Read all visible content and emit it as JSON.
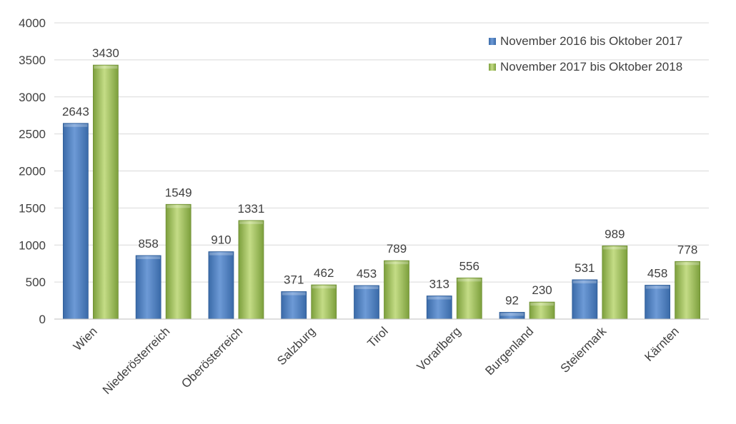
{
  "chart_data": {
    "type": "bar",
    "categories": [
      "Wien",
      "Niederösterreich",
      "Oberösterreich",
      "Salzburg",
      "Tirol",
      "Vorarlberg",
      "Burgenland",
      "Steiermark",
      "Kärnten"
    ],
    "series": [
      {
        "name": "November 2016 bis Oktober 2017",
        "values": [
          2643,
          858,
          910,
          371,
          453,
          313,
          92,
          531,
          458
        ],
        "color": "#4f81bd"
      },
      {
        "name": "November 2017 bis Oktober 2018",
        "values": [
          3430,
          1549,
          1331,
          462,
          789,
          556,
          230,
          989,
          778
        ],
        "color": "#9bbb59"
      }
    ],
    "yticks": [
      0,
      500,
      1000,
      1500,
      2000,
      2500,
      3000,
      3500,
      4000
    ],
    "ylim": [
      0,
      4000
    ],
    "grid": true,
    "legend_position": "top-right",
    "data_labels": true
  }
}
